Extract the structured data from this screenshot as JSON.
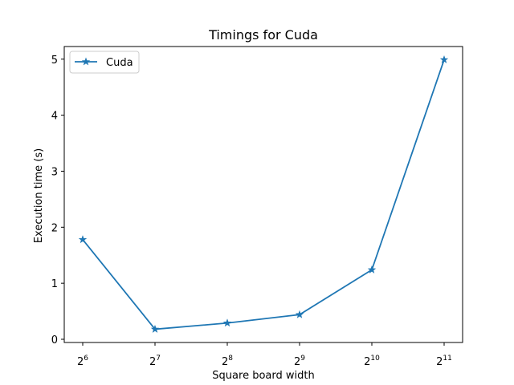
{
  "chart_data": {
    "type": "line",
    "title": "Timings for Cuda",
    "xlabel": "Square board width",
    "ylabel": "Execution time (s)",
    "x_scale": "log2",
    "x_ticks": [
      {
        "base": "2",
        "exp": "6"
      },
      {
        "base": "2",
        "exp": "7"
      },
      {
        "base": "2",
        "exp": "8"
      },
      {
        "base": "2",
        "exp": "9"
      },
      {
        "base": "2",
        "exp": "10"
      },
      {
        "base": "2",
        "exp": "11"
      }
    ],
    "y_ticks": [
      "0",
      "1",
      "2",
      "3",
      "4",
      "5"
    ],
    "x": [
      64,
      128,
      256,
      512,
      1024,
      2048
    ],
    "series": [
      {
        "name": "Cuda",
        "color": "#1f77b4",
        "marker": "star",
        "values": [
          1.78,
          0.18,
          0.29,
          0.44,
          1.24,
          4.99
        ]
      }
    ],
    "grid": false,
    "legend_position": "upper-left"
  }
}
